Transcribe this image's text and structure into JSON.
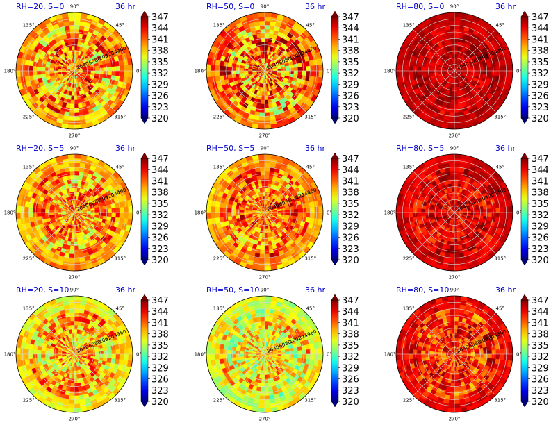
{
  "figure": {
    "colormap": "jet",
    "color_range": [
      320,
      350
    ]
  },
  "chart_data": [
    {
      "type": "heatmap",
      "projection": "polar",
      "title": "RH=20, S=0",
      "time_label": "36 hr",
      "angle_ticks": [
        "0°",
        "45°",
        "90°",
        "135°",
        "180°",
        "225°",
        "270°",
        "315°"
      ],
      "radial_ticks": [
        "20",
        "40",
        "60",
        "80",
        "100",
        "120",
        "140",
        "160"
      ],
      "colorbar_ticks": [
        "320",
        "323",
        "326",
        "329",
        "332",
        "335",
        "338",
        "341",
        "344",
        "347"
      ],
      "mean_value": 342,
      "variability": 6,
      "outer_ring_value": 341
    },
    {
      "type": "heatmap",
      "projection": "polar",
      "title": "RH=50, S=0",
      "time_label": "36 hr",
      "angle_ticks": [
        "0°",
        "45°",
        "90°",
        "135°",
        "180°",
        "225°",
        "270°",
        "315°"
      ],
      "radial_ticks": [
        "20",
        "40",
        "60",
        "80",
        "100",
        "120",
        "140",
        "160"
      ],
      "colorbar_ticks": [
        "320",
        "323",
        "326",
        "329",
        "332",
        "335",
        "338",
        "341",
        "344",
        "347"
      ],
      "mean_value": 343,
      "variability": 7,
      "outer_ring_value": 343
    },
    {
      "type": "heatmap",
      "projection": "polar",
      "title": "RH=80, S=0",
      "time_label": "36 hr",
      "angle_ticks": [
        "0°",
        "45°",
        "90°",
        "135°",
        "180°",
        "225°",
        "270°",
        "315°"
      ],
      "radial_ticks": [
        "20",
        "40",
        "60",
        "80",
        "100",
        "120",
        "140",
        "160"
      ],
      "colorbar_ticks": [
        "320",
        "323",
        "326",
        "329",
        "332",
        "335",
        "338",
        "341",
        "344",
        "347"
      ],
      "mean_value": 348,
      "variability": 2,
      "outer_ring_value": 348
    },
    {
      "type": "heatmap",
      "projection": "polar",
      "title": "RH=20, S=5",
      "time_label": "36 hr",
      "angle_ticks": [
        "0°",
        "45°",
        "90°",
        "135°",
        "180°",
        "225°",
        "270°",
        "315°"
      ],
      "radial_ticks": [
        "20",
        "40",
        "60",
        "80",
        "100",
        "120",
        "140",
        "160"
      ],
      "colorbar_ticks": [
        "320",
        "323",
        "326",
        "329",
        "332",
        "335",
        "338",
        "341",
        "344",
        "347"
      ],
      "mean_value": 342,
      "variability": 5,
      "outer_ring_value": 340
    },
    {
      "type": "heatmap",
      "projection": "polar",
      "title": "RH=50, S=5",
      "time_label": "36 hr",
      "angle_ticks": [
        "0°",
        "45°",
        "90°",
        "135°",
        "180°",
        "225°",
        "270°",
        "315°"
      ],
      "radial_ticks": [
        "20",
        "40",
        "60",
        "80",
        "100",
        "120",
        "140",
        "160"
      ],
      "colorbar_ticks": [
        "320",
        "323",
        "326",
        "329",
        "332",
        "335",
        "338",
        "341",
        "344",
        "347"
      ],
      "mean_value": 343,
      "variability": 5,
      "outer_ring_value": 340
    },
    {
      "type": "heatmap",
      "projection": "polar",
      "title": "RH=80, S=5",
      "time_label": "36 hr",
      "angle_ticks": [
        "0°",
        "45°",
        "90°",
        "135°",
        "180°",
        "225°",
        "270°",
        "315°"
      ],
      "radial_ticks": [
        "20",
        "40",
        "60",
        "80",
        "100",
        "120",
        "140",
        "160"
      ],
      "colorbar_ticks": [
        "320",
        "323",
        "326",
        "329",
        "332",
        "335",
        "338",
        "341",
        "344",
        "347"
      ],
      "mean_value": 347,
      "variability": 3,
      "outer_ring_value": 348
    },
    {
      "type": "heatmap",
      "projection": "polar",
      "title": "RH=20, S=10",
      "time_label": "36 hr",
      "angle_ticks": [
        "0°",
        "45°",
        "90°",
        "135°",
        "180°",
        "225°",
        "270°",
        "315°"
      ],
      "radial_ticks": [
        "20",
        "40",
        "60",
        "80",
        "100",
        "120",
        "140",
        "160"
      ],
      "colorbar_ticks": [
        "320",
        "323",
        "326",
        "329",
        "332",
        "335",
        "338",
        "341",
        "344",
        "347"
      ],
      "mean_value": 341,
      "variability": 5,
      "outer_ring_value": 337
    },
    {
      "type": "heatmap",
      "projection": "polar",
      "title": "RH=50, S=10",
      "time_label": "36 hr",
      "angle_ticks": [
        "0°",
        "45°",
        "90°",
        "135°",
        "180°",
        "225°",
        "270°",
        "315°"
      ],
      "radial_ticks": [
        "20",
        "40",
        "60",
        "80",
        "100",
        "120",
        "140",
        "160"
      ],
      "colorbar_ticks": [
        "320",
        "323",
        "326",
        "329",
        "332",
        "335",
        "338",
        "341",
        "344",
        "347"
      ],
      "mean_value": 339,
      "variability": 5,
      "outer_ring_value": 337
    },
    {
      "type": "heatmap",
      "projection": "polar",
      "title": "RH=80, S=10",
      "time_label": "36 hr",
      "angle_ticks": [
        "0°",
        "45°",
        "90°",
        "135°",
        "180°",
        "225°",
        "270°",
        "315°"
      ],
      "radial_ticks": [
        "20",
        "40",
        "60",
        "80",
        "100",
        "120",
        "140",
        "160"
      ],
      "colorbar_ticks": [
        "320",
        "323",
        "326",
        "329",
        "332",
        "335",
        "338",
        "341",
        "344",
        "347"
      ],
      "mean_value": 345,
      "variability": 4,
      "outer_ring_value": 348
    }
  ]
}
